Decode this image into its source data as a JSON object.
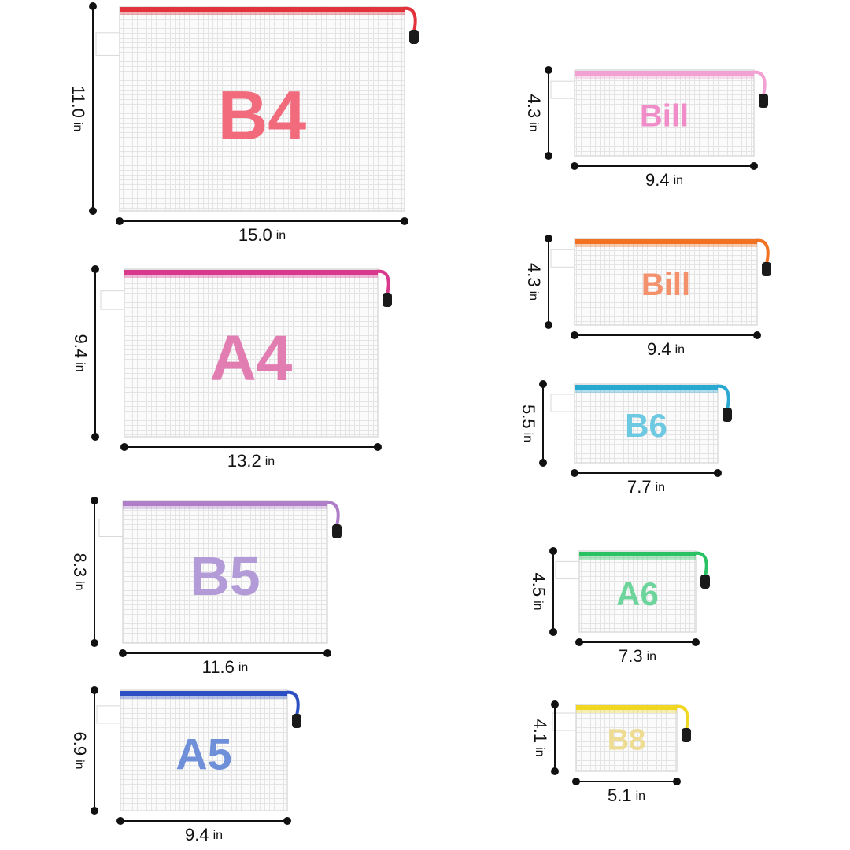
{
  "unit": "in",
  "items": [
    {
      "label": "B4",
      "height": "11.0",
      "width": "15.0",
      "zipper_color": "#e2323c",
      "text_color": "#f16b7c"
    },
    {
      "label": "A4",
      "height": "9.4",
      "width": "13.2",
      "zipper_color": "#d8398c",
      "text_color": "#e27db2"
    },
    {
      "label": "B5",
      "height": "8.3",
      "width": "11.6",
      "zipper_color": "#b07ec9",
      "text_color": "#b29bd7"
    },
    {
      "label": "A5",
      "height": "6.9",
      "width": "9.4",
      "zipper_color": "#2b4fc2",
      "text_color": "#6f8fd9"
    },
    {
      "label": "Bill",
      "height": "4.3",
      "width": "9.4",
      "zipper_color": "#f2a2d2",
      "text_color": "#f08dc9"
    },
    {
      "label": "Bill",
      "height": "4.3",
      "width": "9.4",
      "zipper_color": "#f27222",
      "text_color": "#f2916c"
    },
    {
      "label": "B6",
      "height": "5.5",
      "width": "7.7",
      "zipper_color": "#29a9d2",
      "text_color": "#6dc9e1"
    },
    {
      "label": "A6",
      "height": "4.5",
      "width": "7.3",
      "zipper_color": "#29c262",
      "text_color": "#6dd59b"
    },
    {
      "label": "B8",
      "height": "4.1",
      "width": "5.1",
      "zipper_color": "#f0d822",
      "text_color": "#eddc92"
    }
  ]
}
